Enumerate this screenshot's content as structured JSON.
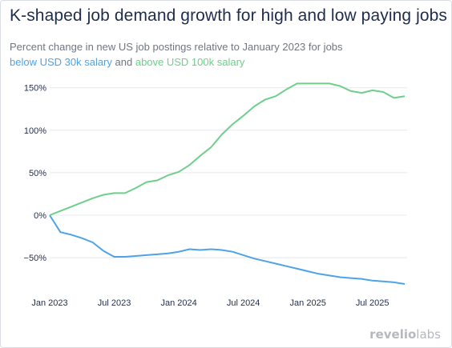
{
  "header": {
    "title": "K-shaped job demand growth for high and low paying jobs",
    "subtitle": "Percent change in new US job postings relative to January 2023 for jobs",
    "legend_low": "below USD 30k salary",
    "legend_and": "and",
    "legend_high": "above USD 100k salary"
  },
  "branding": {
    "logo_part1": "revelio",
    "logo_part2": "labs"
  },
  "colors": {
    "low": "#4da3e8",
    "high": "#6dcf8a",
    "grid": "#e6e8ec",
    "text": "#1e2c4d"
  },
  "chart_data": {
    "type": "line",
    "title": "K-shaped job demand growth for high and low paying jobs",
    "subtitle": "Percent change in new US job postings relative to January 2023 for jobs",
    "xlabel": "",
    "ylabel": "",
    "ylim": [
      -80,
      160
    ],
    "y_ticks": [
      -50,
      0,
      50,
      100,
      150
    ],
    "y_tick_labels": [
      "−50%",
      "0%",
      "50%",
      "100%",
      "150%"
    ],
    "x_ticks": [
      "2023-01",
      "2023-07",
      "2024-01",
      "2024-07",
      "2025-01",
      "2025-07"
    ],
    "x_tick_labels": [
      "Jan 2023",
      "Jul 2023",
      "Jan 2024",
      "Jul 2024",
      "Jan 2025",
      "Jul 2025"
    ],
    "grid": true,
    "x": [
      "2023-01",
      "2023-02",
      "2023-03",
      "2023-04",
      "2023-05",
      "2023-06",
      "2023-07",
      "2023-08",
      "2023-09",
      "2023-10",
      "2023-11",
      "2023-12",
      "2024-01",
      "2024-02",
      "2024-03",
      "2024-04",
      "2024-05",
      "2024-06",
      "2024-07",
      "2024-08",
      "2024-09",
      "2024-10",
      "2024-11",
      "2024-12",
      "2025-01",
      "2025-02",
      "2025-03",
      "2025-04",
      "2025-05",
      "2025-06",
      "2025-07",
      "2025-08",
      "2025-09",
      "2025-10"
    ],
    "series": [
      {
        "name": "below USD 30k salary",
        "color": "#4da3e8",
        "values": [
          0,
          -20,
          -23,
          -27,
          -32,
          -42,
          -49,
          -49,
          -48,
          -47,
          -46,
          -45,
          -43,
          -40,
          -41,
          -40,
          -41,
          -43,
          -47,
          -51,
          -54,
          -57,
          -60,
          -63,
          -66,
          -69,
          -71,
          -73,
          -74,
          -75,
          -77,
          -78,
          -79,
          -81
        ]
      },
      {
        "name": "above USD 100k salary",
        "color": "#6dcf8a",
        "values": [
          0,
          5,
          10,
          15,
          20,
          24,
          26,
          26,
          32,
          39,
          41,
          47,
          51,
          59,
          70,
          80,
          95,
          107,
          117,
          128,
          136,
          140,
          148,
          155,
          162,
          162,
          157,
          152,
          146,
          144,
          147,
          145,
          138,
          140
        ]
      }
    ]
  }
}
